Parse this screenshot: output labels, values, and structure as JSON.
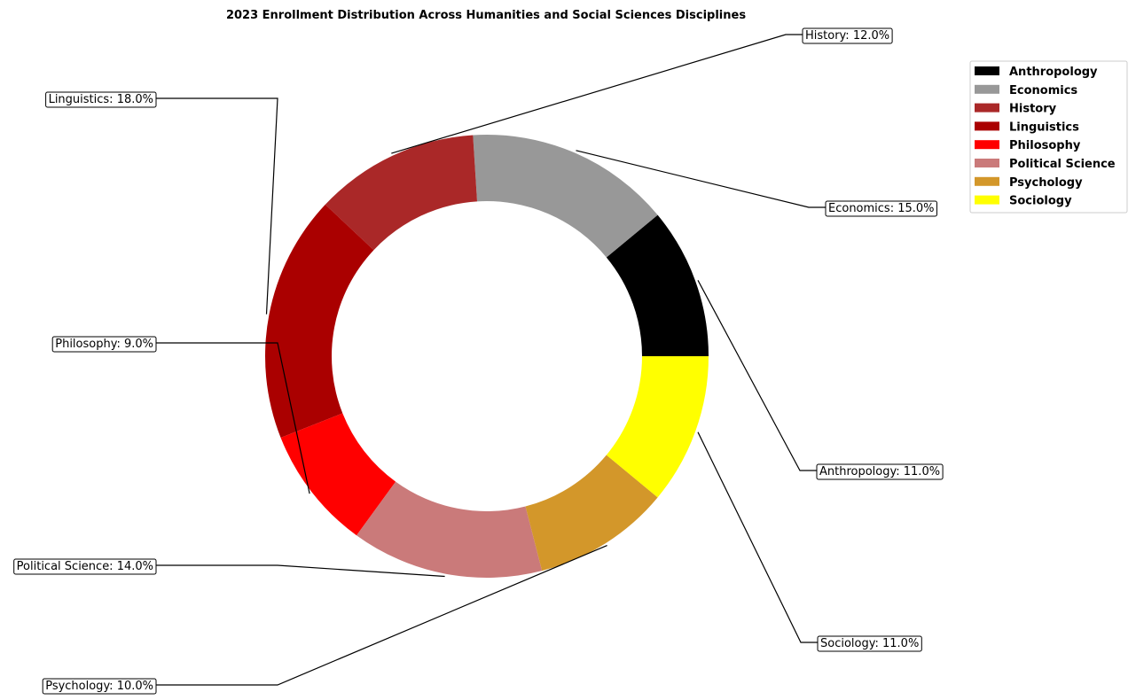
{
  "chart_data": {
    "type": "pie",
    "variant": "donut",
    "title": "2023 Enrollment Distribution Across Humanities and Social Sciences Disciplines",
    "categories": [
      "Anthropology",
      "Economics",
      "History",
      "Linguistics",
      "Philosophy",
      "Political Science",
      "Psychology",
      "Sociology"
    ],
    "values": [
      11.0,
      15.0,
      12.0,
      18.0,
      9.0,
      14.0,
      10.0,
      11.0
    ],
    "unit": "%",
    "colors": [
      "#000000",
      "#989898",
      "#aa2828",
      "#aa0000",
      "#ff0000",
      "#ca7a7a",
      "#d3972a",
      "#ffff00"
    ],
    "slice_labels": [
      "Anthropology: 11.0%",
      "Economics: 15.0%",
      "History: 12.0%",
      "Linguistics: 18.0%",
      "Philosophy: 9.0%",
      "Political Science: 14.0%",
      "Psychology: 10.0%",
      "Sociology: 11.0%"
    ],
    "legend": {
      "placement": "top-right",
      "entries": [
        "Anthropology",
        "Economics",
        "History",
        "Linguistics",
        "Philosophy",
        "Political Science",
        "Psychology",
        "Sociology"
      ]
    },
    "direction": "counterclockwise",
    "start": "east"
  }
}
